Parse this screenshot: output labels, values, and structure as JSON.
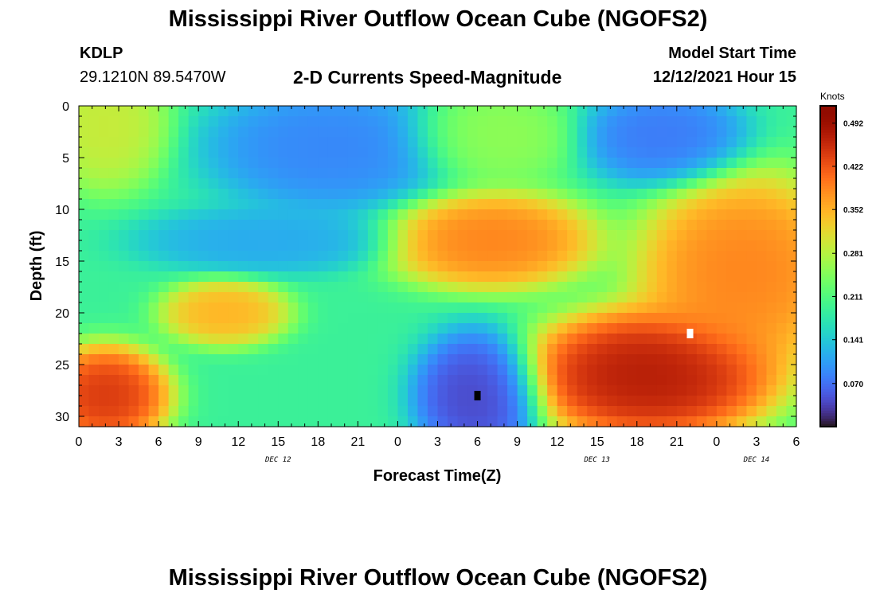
{
  "header": {
    "title": "Mississippi River Outflow Ocean Cube (NGOFS2)",
    "station": "KDLP",
    "coordinates": "29.1210N  89.5470W",
    "subtitle": "2-D Currents Speed-Magnitude",
    "model_start_label": "Model Start Time",
    "model_start_value": "12/12/2021 Hour 15"
  },
  "footer": {
    "title": "Mississippi River Outflow Ocean Cube (NGOFS2)"
  },
  "chart_data": {
    "type": "heatmap",
    "xlabel": "Forecast Time(Z)",
    "ylabel": "Depth (ft)",
    "x_tick_labels": [
      "0",
      "3",
      "6",
      "9",
      "12",
      "15",
      "18",
      "21",
      "0",
      "3",
      "6",
      "9",
      "12",
      "15",
      "18",
      "21",
      "0",
      "3",
      "6"
    ],
    "y_tick_labels": [
      "0",
      "5",
      "10",
      "15",
      "20",
      "25",
      "30"
    ],
    "date_labels": [
      "DEC 12",
      "DEC 13",
      "DEC 14"
    ],
    "xlim_hours": [
      0,
      54
    ],
    "ylim": [
      0,
      31
    ],
    "y_inverted": true,
    "colorbar": {
      "unit_label": "Knots",
      "ticks": [
        "0.492",
        "0.422",
        "0.352",
        "0.281",
        "0.211",
        "0.141",
        "0.070"
      ],
      "tick_values": [
        0.492,
        0.422,
        0.352,
        0.281,
        0.211,
        0.141,
        0.07
      ],
      "range": [
        0.0,
        0.52
      ],
      "colormap": "turbo"
    },
    "markers": [
      {
        "type": "min",
        "hour": 30,
        "depth": 28,
        "color": "#000000"
      },
      {
        "type": "max",
        "hour": 46,
        "depth": 22,
        "color": "#ffffff"
      }
    ],
    "features": [
      {
        "hour": 2,
        "depth": 2,
        "value": 0.3,
        "spread_h": 3,
        "spread_d": 4
      },
      {
        "hour": 2,
        "depth": 28,
        "value": 0.46,
        "spread_h": 3,
        "spread_d": 3
      },
      {
        "hour": 11,
        "depth": 20,
        "value": 0.36,
        "spread_h": 3,
        "spread_d": 2
      },
      {
        "hour": 14,
        "depth": 13,
        "value": 0.11,
        "spread_h": 6,
        "spread_d": 2
      },
      {
        "hour": 19,
        "depth": 4,
        "value": 0.08,
        "spread_h": 6,
        "spread_d": 4
      },
      {
        "hour": 30,
        "depth": 28,
        "value": 0.03,
        "spread_h": 3,
        "spread_d": 4
      },
      {
        "hour": 31,
        "depth": 3,
        "value": 0.26,
        "spread_h": 4,
        "spread_d": 3
      },
      {
        "hour": 31,
        "depth": 13,
        "value": 0.4,
        "spread_h": 5,
        "spread_d": 3
      },
      {
        "hour": 44,
        "depth": 3,
        "value": 0.07,
        "spread_h": 4,
        "spread_d": 3
      },
      {
        "hour": 43,
        "depth": 26,
        "value": 0.49,
        "spread_h": 6,
        "spread_d": 4
      },
      {
        "hour": 50,
        "depth": 16,
        "value": 0.4,
        "spread_h": 5,
        "spread_d": 6
      }
    ],
    "background_value": 0.19
  }
}
